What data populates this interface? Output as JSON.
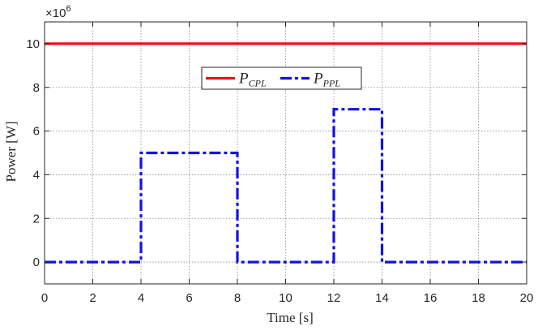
{
  "chart_data": {
    "type": "line",
    "xlabel": "Time [s]",
    "ylabel": "Power [W]",
    "y_exponent_label": "×10",
    "y_exponent_power": "6",
    "xlim": [
      0,
      20
    ],
    "ylim": [
      -1000000,
      11000000
    ],
    "x_ticks": [
      0,
      2,
      4,
      6,
      8,
      10,
      12,
      14,
      16,
      18,
      20
    ],
    "x_tick_labels": [
      "0",
      "2",
      "4",
      "6",
      "8",
      "10",
      "12",
      "14",
      "16",
      "18",
      "20"
    ],
    "y_ticks": [
      0,
      2000000,
      4000000,
      6000000,
      8000000,
      10000000
    ],
    "y_tick_labels": [
      "0",
      "2",
      "4",
      "6",
      "8",
      "10"
    ],
    "grid": true,
    "legend_position": "top-center",
    "series": [
      {
        "name": "P_CPL",
        "legend_base": "P",
        "legend_sub": "CPL",
        "color": "#e8141c",
        "style": "solid",
        "x": [
          0,
          20
        ],
        "y": [
          10000000,
          10000000
        ]
      },
      {
        "name": "P_PPL",
        "legend_base": "P",
        "legend_sub": "PPL",
        "color": "#1212e0",
        "style": "dash-dot",
        "x": [
          0,
          4,
          4,
          8,
          8,
          12,
          12,
          14,
          14,
          20
        ],
        "y": [
          0,
          0,
          5000000,
          5000000,
          0,
          0,
          7000000,
          7000000,
          0,
          0
        ]
      }
    ]
  }
}
